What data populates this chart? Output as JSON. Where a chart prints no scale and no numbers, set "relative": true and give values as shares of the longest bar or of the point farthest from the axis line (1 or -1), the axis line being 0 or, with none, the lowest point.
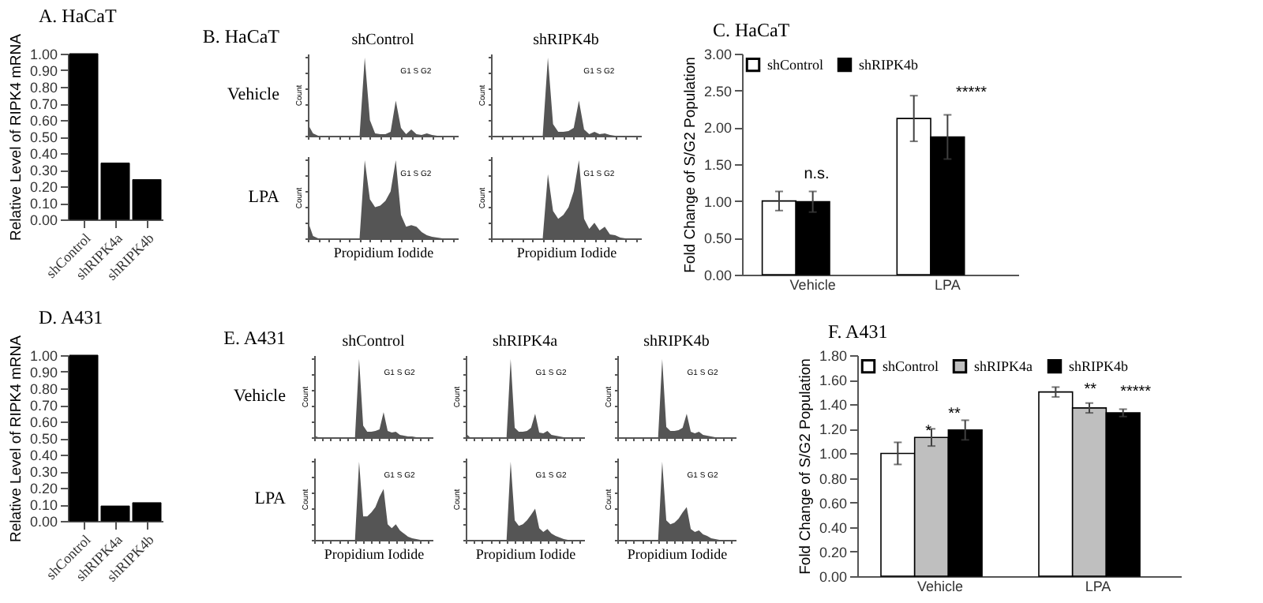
{
  "chart_data": [
    {
      "type": "bar",
      "title": "A. HaCaT",
      "ylabel": "Relative Level of RIPK4 mRNA",
      "categories": [
        "shControl",
        "shRIPK4a",
        "shRIPK4b"
      ],
      "values": [
        1.0,
        0.34,
        0.24
      ],
      "color": "#000000",
      "ylim": [
        0,
        1
      ],
      "yticks": [
        {
          "value": 0,
          "label": "0.00"
        },
        {
          "value": 0.1,
          "label": "0.10"
        },
        {
          "value": 0.2,
          "label": "0.20"
        },
        {
          "value": 0.3,
          "label": "0.30"
        },
        {
          "value": 0.4,
          "label": "0.40"
        },
        {
          "value": 0.5,
          "label": "0.50"
        },
        {
          "value": 0.6,
          "label": "0.60"
        },
        {
          "value": 0.7,
          "label": "0.70"
        },
        {
          "value": 0.8,
          "label": "0.80"
        },
        {
          "value": 0.9,
          "label": "0.90"
        },
        {
          "value": 1,
          "label": "1.00"
        }
      ],
      "grid": false
    },
    {
      "type": "area",
      "relative": true,
      "tick_labels": false,
      "title": "shControl",
      "ylabel": "Count",
      "annotations": [
        "G1  S  G2",
        "Vehicle",
        "B. HaCaT"
      ],
      "color": "#555555",
      "categories": [
        null,
        null,
        null,
        null,
        null,
        null,
        null,
        null,
        null,
        null,
        null,
        null,
        null,
        null,
        null,
        null,
        null,
        null,
        null,
        null,
        null,
        null,
        null,
        null,
        null,
        null,
        null,
        null,
        null,
        null
      ],
      "values": [
        0.15,
        0.03,
        0,
        0,
        0,
        0,
        0,
        0,
        0,
        0,
        0,
        1.0,
        0.2,
        0.03,
        0.02,
        0.02,
        0.05,
        0.45,
        0.1,
        0.02,
        0.08,
        0.02,
        0.01,
        0.03,
        0.01,
        0,
        0,
        0,
        0,
        0
      ]
    },
    {
      "type": "area",
      "relative": true,
      "tick_labels": false,
      "title": "shRIPK4b",
      "ylabel": "Count",
      "annotations": [
        "G1  S  G2"
      ],
      "color": "#555555",
      "categories": [
        null,
        null,
        null,
        null,
        null,
        null,
        null,
        null,
        null,
        null,
        null,
        null,
        null,
        null,
        null,
        null,
        null,
        null,
        null,
        null,
        null,
        null,
        null,
        null,
        null,
        null,
        null,
        null,
        null,
        null
      ],
      "values": [
        0,
        0,
        0,
        0,
        0,
        0,
        0,
        0,
        0,
        0,
        0,
        1.0,
        0.15,
        0.05,
        0.05,
        0.06,
        0.1,
        0.45,
        0.08,
        0.02,
        0.05,
        0.02,
        0.03,
        0.01,
        0,
        0,
        0,
        0,
        0,
        0
      ]
    },
    {
      "type": "area",
      "relative": true,
      "tick_labels": false,
      "ylabel": "Count",
      "xlabel": "Propidium Iodide",
      "annotations": [
        "G1  S  G2",
        "LPA"
      ],
      "color": "#555555",
      "categories": [
        null,
        null,
        null,
        null,
        null,
        null,
        null,
        null,
        null,
        null,
        null,
        null,
        null,
        null,
        null,
        null,
        null,
        null,
        null,
        null,
        null,
        null,
        null,
        null,
        null,
        null,
        null,
        null,
        null,
        null
      ],
      "values": [
        0.22,
        0.03,
        0,
        0,
        0,
        0,
        0,
        0,
        0,
        0,
        0,
        1.0,
        0.5,
        0.4,
        0.42,
        0.48,
        0.6,
        1.0,
        0.3,
        0.15,
        0.17,
        0.15,
        0.08,
        0.04,
        0.02,
        0.01,
        0,
        0,
        0,
        0
      ]
    },
    {
      "type": "area",
      "relative": true,
      "tick_labels": false,
      "ylabel": "Count",
      "xlabel": "Propidium Iodide",
      "annotations": [
        "G1  S  G2"
      ],
      "color": "#555555",
      "categories": [
        null,
        null,
        null,
        null,
        null,
        null,
        null,
        null,
        null,
        null,
        null,
        null,
        null,
        null,
        null,
        null,
        null,
        null,
        null,
        null,
        null,
        null,
        null,
        null,
        null,
        null,
        null,
        null,
        null,
        null
      ],
      "values": [
        0,
        0,
        0,
        0,
        0,
        0,
        0,
        0,
        0,
        0,
        0,
        0.82,
        0.35,
        0.25,
        0.3,
        0.4,
        0.6,
        1.0,
        0.25,
        0.12,
        0.2,
        0.1,
        0.15,
        0.05,
        0.04,
        0.01,
        0,
        0,
        0,
        0
      ]
    },
    {
      "type": "bar",
      "title": "C. HaCaT",
      "ylabel": "Fold Change of S/G2 Population",
      "categories": [
        "Vehicle",
        "LPA"
      ],
      "legend": "top left",
      "grid": false,
      "series": [
        {
          "name": "shControl",
          "color": "#ffffff",
          "values": [
            1.0,
            2.12
          ],
          "errors": [
            0.13,
            0.31
          ]
        },
        {
          "name": "shRIPK4b",
          "color": "#000000",
          "values": [
            0.99,
            1.87
          ],
          "errors": [
            0.14,
            0.3
          ]
        }
      ],
      "ylim": [
        0,
        3
      ],
      "yticks": [
        {
          "value": 0,
          "label": "0.00"
        },
        {
          "value": 0.5,
          "label": "0.50"
        },
        {
          "value": 1,
          "label": "1.00"
        },
        {
          "value": 1.5,
          "label": "1.50"
        },
        {
          "value": 2,
          "label": "2.00"
        },
        {
          "value": 2.5,
          "label": "2.50"
        },
        {
          "value": 3,
          "label": "3.00"
        }
      ],
      "annotations": [
        "n.s.",
        "*****"
      ]
    },
    {
      "type": "bar",
      "title": "D. A431",
      "ylabel": "Relative Level of RIPK4 mRNA",
      "categories": [
        "shControl",
        "shRIPK4a",
        "shRIPK4b"
      ],
      "values": [
        1.0,
        0.09,
        0.11
      ],
      "color": "#000000",
      "ylim": [
        0,
        1
      ],
      "yticks": [
        {
          "value": 0,
          "label": "0.00"
        },
        {
          "value": 0.1,
          "label": "0.10"
        },
        {
          "value": 0.2,
          "label": "0.20"
        },
        {
          "value": 0.3,
          "label": "0.30"
        },
        {
          "value": 0.4,
          "label": "0.40"
        },
        {
          "value": 0.5,
          "label": "0.50"
        },
        {
          "value": 0.6,
          "label": "0.60"
        },
        {
          "value": 0.7,
          "label": "0.70"
        },
        {
          "value": 0.8,
          "label": "0.80"
        },
        {
          "value": 0.9,
          "label": "0.90"
        },
        {
          "value": 1,
          "label": "1.00"
        }
      ],
      "grid": false
    },
    {
      "type": "area",
      "relative": true,
      "tick_labels": false,
      "title": "shControl",
      "ylabel": "Count",
      "annotations": [
        "G1  S  G2",
        "Vehicle",
        "E. A431"
      ],
      "color": "#555555",
      "categories": [
        null,
        null,
        null,
        null,
        null,
        null,
        null,
        null,
        null,
        null,
        null,
        null,
        null,
        null,
        null,
        null,
        null,
        null,
        null,
        null,
        null,
        null,
        null,
        null,
        null,
        null,
        null,
        null,
        null,
        null
      ],
      "values": [
        0.02,
        0,
        0,
        0,
        0,
        0,
        0,
        0,
        0,
        0,
        0,
        1.0,
        0.15,
        0.07,
        0.07,
        0.08,
        0.1,
        0.32,
        0.08,
        0.06,
        0.07,
        0.03,
        0.02,
        0.01,
        0.01,
        0,
        0,
        0,
        0,
        0
      ]
    },
    {
      "type": "area",
      "relative": true,
      "tick_labels": false,
      "title": "shRIPK4a",
      "ylabel": "Count",
      "annotations": [
        "G1  S  G2"
      ],
      "color": "#555555",
      "categories": [
        null,
        null,
        null,
        null,
        null,
        null,
        null,
        null,
        null,
        null,
        null,
        null,
        null,
        null,
        null,
        null,
        null,
        null,
        null,
        null,
        null,
        null,
        null,
        null,
        null,
        null,
        null,
        null,
        null,
        null
      ],
      "values": [
        0.05,
        0,
        0,
        0,
        0,
        0,
        0,
        0,
        0,
        0,
        0,
        1.0,
        0.12,
        0.07,
        0.07,
        0.08,
        0.12,
        0.3,
        0.06,
        0.05,
        0.08,
        0.03,
        0.02,
        0.01,
        0,
        0,
        0,
        0,
        0,
        0
      ]
    },
    {
      "type": "area",
      "relative": true,
      "tick_labels": false,
      "title": "shRIPK4b",
      "ylabel": "Count",
      "annotations": [
        "G1  S  G2"
      ],
      "color": "#555555",
      "categories": [
        null,
        null,
        null,
        null,
        null,
        null,
        null,
        null,
        null,
        null,
        null,
        null,
        null,
        null,
        null,
        null,
        null,
        null,
        null,
        null,
        null,
        null,
        null,
        null,
        null,
        null,
        null,
        null,
        null,
        null
      ],
      "values": [
        0,
        0,
        0,
        0,
        0,
        0,
        0,
        0,
        0,
        0,
        0,
        1.0,
        0.13,
        0.08,
        0.08,
        0.09,
        0.12,
        0.3,
        0.07,
        0.05,
        0.07,
        0.03,
        0.02,
        0.01,
        0,
        0,
        0,
        0,
        0,
        0
      ]
    },
    {
      "type": "area",
      "relative": true,
      "tick_labels": false,
      "ylabel": "Count",
      "xlabel": "Propidium Iodide",
      "annotations": [
        "G1  S  G2",
        "LPA"
      ],
      "color": "#555555",
      "categories": [
        null,
        null,
        null,
        null,
        null,
        null,
        null,
        null,
        null,
        null,
        null,
        null,
        null,
        null,
        null,
        null,
        null,
        null,
        null,
        null,
        null,
        null,
        null,
        null,
        null,
        null,
        null,
        null,
        null,
        null
      ],
      "values": [
        0,
        0,
        0,
        0,
        0,
        0,
        0,
        0,
        0,
        0,
        0,
        1.0,
        0.3,
        0.3,
        0.35,
        0.42,
        0.55,
        0.65,
        0.2,
        0.15,
        0.2,
        0.12,
        0.08,
        0.04,
        0.02,
        0.01,
        0,
        0,
        0,
        0
      ]
    },
    {
      "type": "area",
      "relative": true,
      "tick_labels": false,
      "ylabel": "Count",
      "xlabel": "Propidium Iodide",
      "annotations": [
        "G1  S  G2"
      ],
      "color": "#555555",
      "categories": [
        null,
        null,
        null,
        null,
        null,
        null,
        null,
        null,
        null,
        null,
        null,
        null,
        null,
        null,
        null,
        null,
        null,
        null,
        null,
        null,
        null,
        null,
        null,
        null,
        null,
        null,
        null,
        null,
        null,
        null
      ],
      "values": [
        0,
        0,
        0,
        0,
        0,
        0,
        0,
        0,
        0,
        0,
        0,
        1.0,
        0.25,
        0.18,
        0.2,
        0.25,
        0.32,
        0.4,
        0.15,
        0.1,
        0.14,
        0.08,
        0.05,
        0.03,
        0.01,
        0,
        0,
        0,
        0,
        0
      ]
    },
    {
      "type": "area",
      "relative": true,
      "tick_labels": false,
      "ylabel": "Count",
      "xlabel": "Propidium Iodide",
      "annotations": [
        "G1  S  G2"
      ],
      "color": "#555555",
      "categories": [
        null,
        null,
        null,
        null,
        null,
        null,
        null,
        null,
        null,
        null,
        null,
        null,
        null,
        null,
        null,
        null,
        null,
        null,
        null,
        null,
        null,
        null,
        null,
        null,
        null,
        null,
        null,
        null,
        null,
        null
      ],
      "values": [
        0,
        0,
        0,
        0,
        0,
        0,
        0,
        0,
        0,
        0,
        0,
        1.0,
        0.25,
        0.2,
        0.22,
        0.27,
        0.35,
        0.42,
        0.14,
        0.1,
        0.12,
        0.07,
        0.05,
        0.02,
        0.01,
        0,
        0,
        0,
        0,
        0
      ]
    },
    {
      "type": "bar",
      "title": "F. A431",
      "ylabel": "Fold Change of S/G2 Population",
      "categories": [
        "Vehicle",
        "LPA"
      ],
      "legend": "top left",
      "grid": false,
      "series": [
        {
          "name": "shControl",
          "color": "#ffffff",
          "values": [
            1.0,
            1.5
          ],
          "errors": [
            0.09,
            0.04
          ]
        },
        {
          "name": "shRIPK4a",
          "color": "#bfbfbf",
          "values": [
            1.13,
            1.37
          ],
          "errors": [
            0.07,
            0.04
          ]
        },
        {
          "name": "shRIPK4b",
          "color": "#000000",
          "values": [
            1.19,
            1.33
          ],
          "errors": [
            0.08,
            0.03
          ]
        }
      ],
      "ylim": [
        0,
        1.8
      ],
      "yticks": [
        {
          "value": 0,
          "label": "0.00"
        },
        {
          "value": 0.2,
          "label": "0.20"
        },
        {
          "value": 0.4,
          "label": "0.40"
        },
        {
          "value": 0.6,
          "label": "0.60"
        },
        {
          "value": 0.8,
          "label": "0.80"
        },
        {
          "value": 1,
          "label": "1.00"
        },
        {
          "value": 1.2,
          "label": "1.20"
        },
        {
          "value": 1.4,
          "label": "1.40"
        },
        {
          "value": 1.6,
          "label": "1.60"
        },
        {
          "value": 1.8,
          "label": "1.80"
        }
      ],
      "annotations": [
        "*",
        "**",
        "**",
        "*****"
      ]
    }
  ]
}
